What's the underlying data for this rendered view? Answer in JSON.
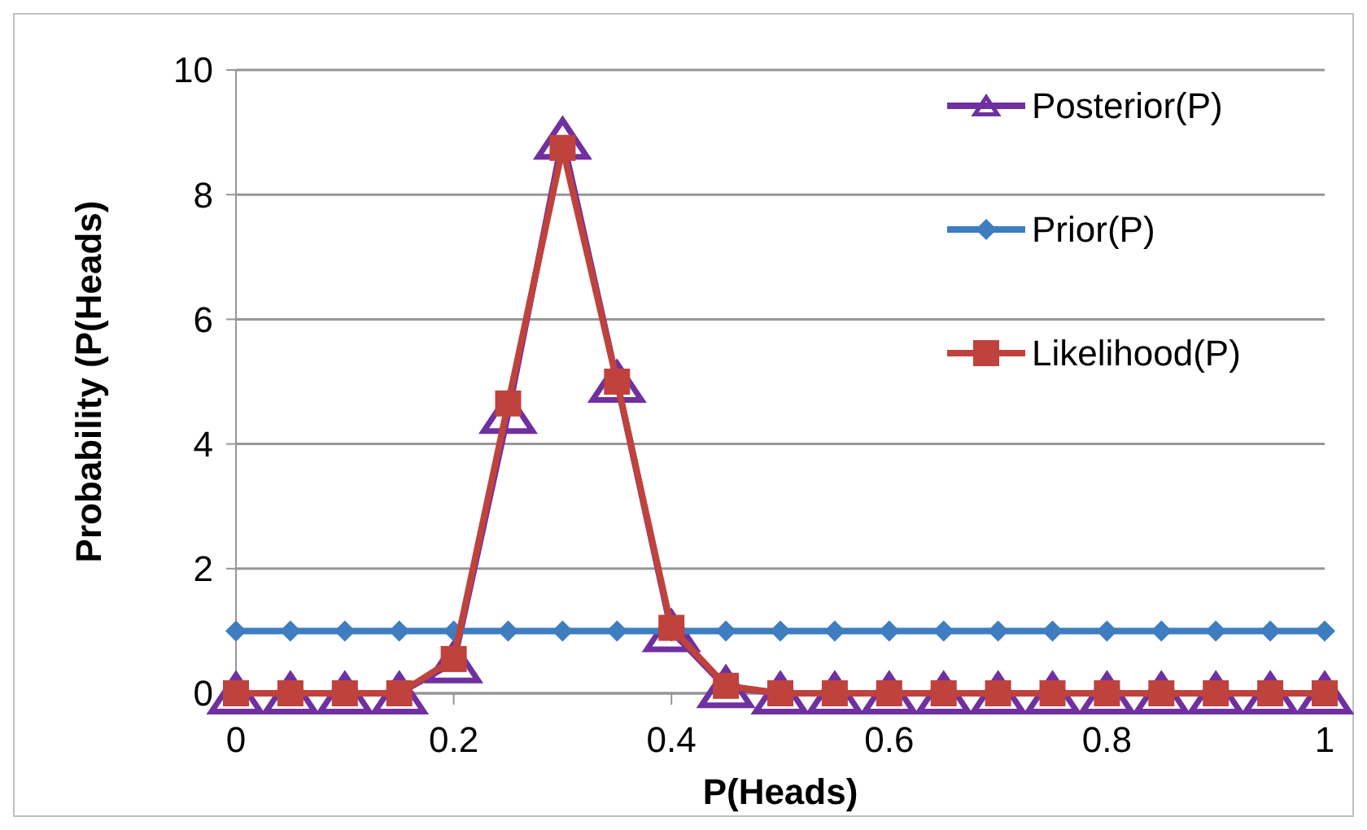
{
  "chart_data": {
    "type": "line",
    "xlabel": "P(Heads)",
    "ylabel": "Probability (P(Heads)",
    "x": [
      0,
      0.05,
      0.1,
      0.15,
      0.2,
      0.25,
      0.3,
      0.35,
      0.4,
      0.45,
      0.5,
      0.55,
      0.6,
      0.65,
      0.7,
      0.75,
      0.8,
      0.85,
      0.9,
      0.95,
      1
    ],
    "xlim": [
      0,
      1
    ],
    "xticks": [
      0,
      0.2,
      0.4,
      0.6,
      0.8,
      1
    ],
    "ylim": [
      0,
      10
    ],
    "yticks": [
      0,
      2,
      4,
      6,
      8,
      10
    ],
    "grid": "y",
    "legend": "top right",
    "series": [
      {
        "name": "Posterior(P)",
        "color": "#7030a0",
        "marker": "triangle",
        "values": [
          0,
          0,
          0,
          0,
          0.5,
          4.5,
          8.9,
          5.0,
          1.0,
          0.1,
          0,
          0,
          0,
          0,
          0,
          0,
          0,
          0,
          0,
          0,
          0
        ]
      },
      {
        "name": "Prior(P)",
        "color": "#3d7dc0",
        "marker": "diamond",
        "values": [
          1,
          1,
          1,
          1,
          1,
          1,
          1,
          1,
          1,
          1,
          1,
          1,
          1,
          1,
          1,
          1,
          1,
          1,
          1,
          1,
          1
        ]
      },
      {
        "name": "Likelihood(P)",
        "color": "#c0423c",
        "marker": "square",
        "values": [
          0,
          0,
          0,
          0,
          0.55,
          4.65,
          8.75,
          5.0,
          1.05,
          0.12,
          0,
          0,
          0,
          0,
          0,
          0,
          0,
          0,
          0,
          0,
          0
        ]
      }
    ]
  }
}
